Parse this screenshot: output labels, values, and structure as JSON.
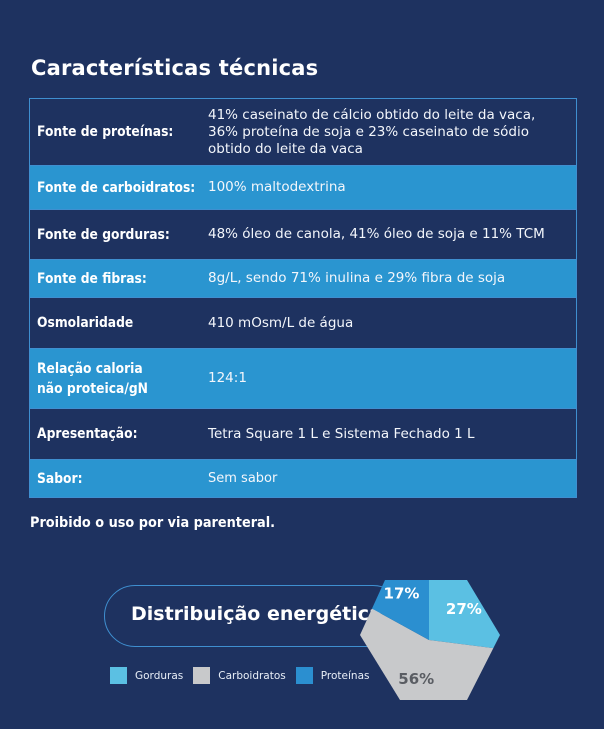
{
  "header": {
    "title": "Características técnicas"
  },
  "table": {
    "rows": [
      {
        "label": "Fonte de proteínas:",
        "value": "41% caseinato de cálcio obtido do leite da vaca, 36% proteína de soja e 23% caseinato de sódio obtido do leite da vaca"
      },
      {
        "label": "Fonte de carboidratos:",
        "value": "100% maltodextrina"
      },
      {
        "label": "Fonte de gorduras:",
        "value": "48% óleo de canola, 41% óleo de soja e 11% TCM"
      },
      {
        "label": "Fonte de fibras:",
        "value": "8g/L, sendo 71% inulina e 29% fibra de soja"
      },
      {
        "label": "Osmolaridade",
        "value": "410 mOsm/L de água"
      },
      {
        "label_line1": "Relação caloria",
        "label_line2": "não proteica/gN",
        "value": "124:1"
      },
      {
        "label": "Apresentação:",
        "value": "Tetra Square 1 L e Sistema Fechado 1 L"
      },
      {
        "label": "Sabor:",
        "value": "Sem sabor"
      }
    ]
  },
  "note": "Proibido o uso por via parenteral.",
  "energy": {
    "title": "Distribuição energética"
  },
  "colors": {
    "background": "#1e3260",
    "row_light": "#2a95d0",
    "border": "#3f8fd0",
    "gorduras": "#5bc0e3",
    "carboidratos": "#c8c9cb",
    "proteinas": "#2b8fd0"
  },
  "chart_data": {
    "type": "pie",
    "title": "Distribuição energética",
    "categories": [
      "Gorduras",
      "Carboidratos",
      "Proteínas"
    ],
    "values": [
      27,
      56,
      17
    ],
    "labels": [
      "27%",
      "56%",
      "17%"
    ],
    "legend": "bottom-left"
  }
}
